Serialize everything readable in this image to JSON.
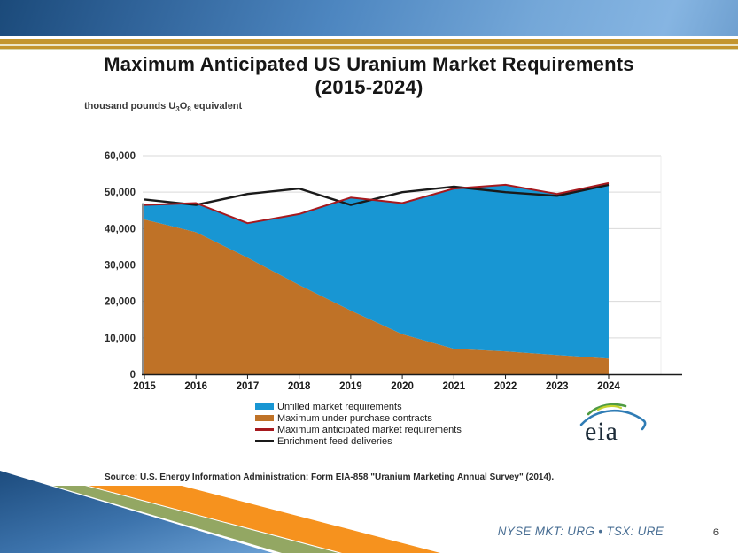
{
  "slide": {
    "title_line1": "Maximum Anticipated US Uranium Market Requirements",
    "title_line2": "(2015-2024)",
    "source_text": "Source:  U.S. Energy Information Administration: Form EIA-858 \"Uranium Marketing Annual Survey\" (2014).",
    "ticker_text": "NYSE MKT: URG • TSX: URE",
    "page_number": "6",
    "logo_text": "eia",
    "colors": {
      "banner_blue_dark": "#1b4a7a",
      "banner_blue_light": "#86b5e2",
      "gold_stripe": "#c3952f",
      "deco_green": "#93a763",
      "deco_orange": "#f6921e",
      "ticker_text": "#4a6f94",
      "logo_green": "#4f9b43",
      "logo_yellow": "#c5d42f",
      "logo_blue": "#2f7cb5"
    }
  },
  "chart_data": {
    "type": "area",
    "title": "",
    "ylabel": "",
    "xlabel": "",
    "unit_label": {
      "pre": "thousand pounds U",
      "sub1": "3",
      "mid": "O",
      "sub2": "8",
      "post": " equivalent"
    },
    "x_labels": [
      "2015",
      "2016",
      "2017",
      "2018",
      "2019",
      "2020",
      "2021",
      "2022",
      "2023",
      "2024"
    ],
    "ylim": [
      0,
      60000
    ],
    "grid": true,
    "gridline_color": "#d9d9d9",
    "legend_position": "bottom",
    "yticks": [
      {
        "v": 0,
        "label": "0"
      },
      {
        "v": 10000,
        "label": "10,000"
      },
      {
        "v": 20000,
        "label": "20,000"
      },
      {
        "v": 30000,
        "label": "30,000"
      },
      {
        "v": 40000,
        "label": "40,000"
      },
      {
        "v": 50000,
        "label": "50,000"
      },
      {
        "v": 60000,
        "label": "60,000"
      }
    ],
    "series": [
      {
        "id": "unfilled",
        "name": "Unfilled market requirements",
        "render": "area",
        "color": "#1896d3",
        "values": [
          4000,
          8000,
          9500,
          19500,
          31000,
          36000,
          44000,
          45700,
          44200,
          48200
        ]
      },
      {
        "id": "purchase",
        "name": "Maximum under purchase contracts",
        "render": "area",
        "color": "#bf7227",
        "values": [
          42500,
          39000,
          32000,
          24500,
          17500,
          11000,
          7000,
          6300,
          5300,
          4300
        ]
      },
      {
        "id": "anticipated",
        "name": "Maximum anticipated market requirements",
        "render": "line",
        "color": "#a6191e",
        "values": [
          46500,
          47000,
          41500,
          44000,
          48500,
          47000,
          51000,
          52000,
          49500,
          52500
        ]
      },
      {
        "id": "enrichment",
        "name": "Enrichment feed deliveries",
        "render": "line",
        "color": "#1a1a1a",
        "values": [
          48000,
          46500,
          49500,
          51000,
          46500,
          50000,
          51500,
          50000,
          49000,
          52000
        ]
      }
    ]
  }
}
